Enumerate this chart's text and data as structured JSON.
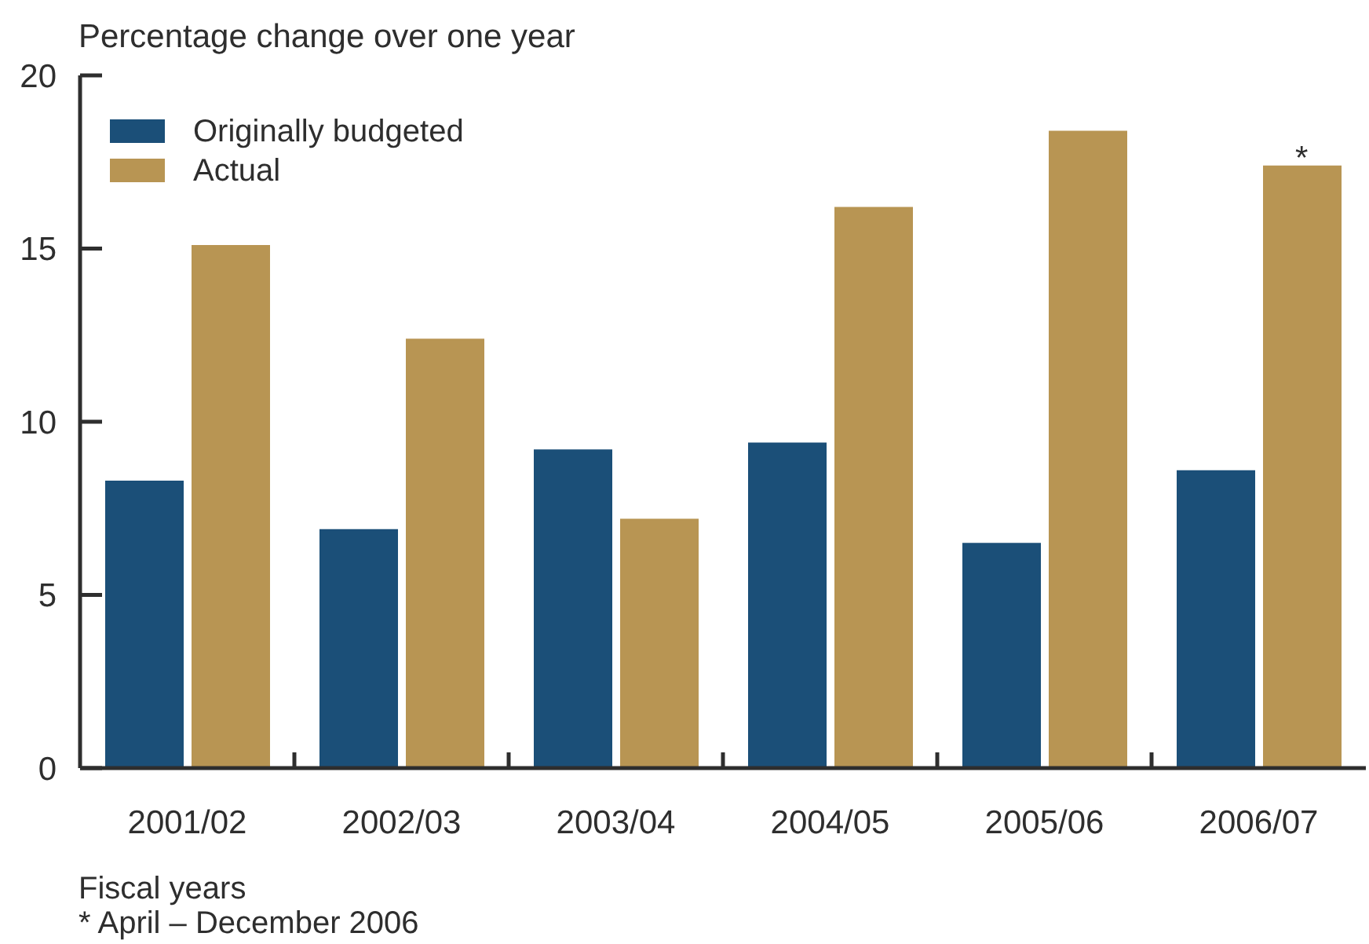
{
  "chart_data": {
    "type": "bar",
    "ylabel": "Percentage change over one year",
    "xlabel": "Fiscal years",
    "categories": [
      "2001/02",
      "2002/03",
      "2003/04",
      "2004/05",
      "2005/06",
      "2006/07"
    ],
    "series": [
      {
        "name": "Originally budgeted",
        "color": "#1b4f78",
        "values": [
          8.3,
          6.9,
          9.2,
          9.4,
          6.5,
          8.6
        ]
      },
      {
        "name": "Actual",
        "color": "#b89553",
        "values": [
          15.1,
          12.4,
          7.2,
          16.2,
          18.4,
          17.4
        ]
      }
    ],
    "ylim": [
      0,
      20
    ],
    "yticks": [
      0,
      5,
      10,
      15,
      20
    ],
    "legend": "top left",
    "annotations": [
      {
        "text": "*",
        "x": "2006/07",
        "y": 17.4
      },
      "* April – December 2006"
    ]
  }
}
